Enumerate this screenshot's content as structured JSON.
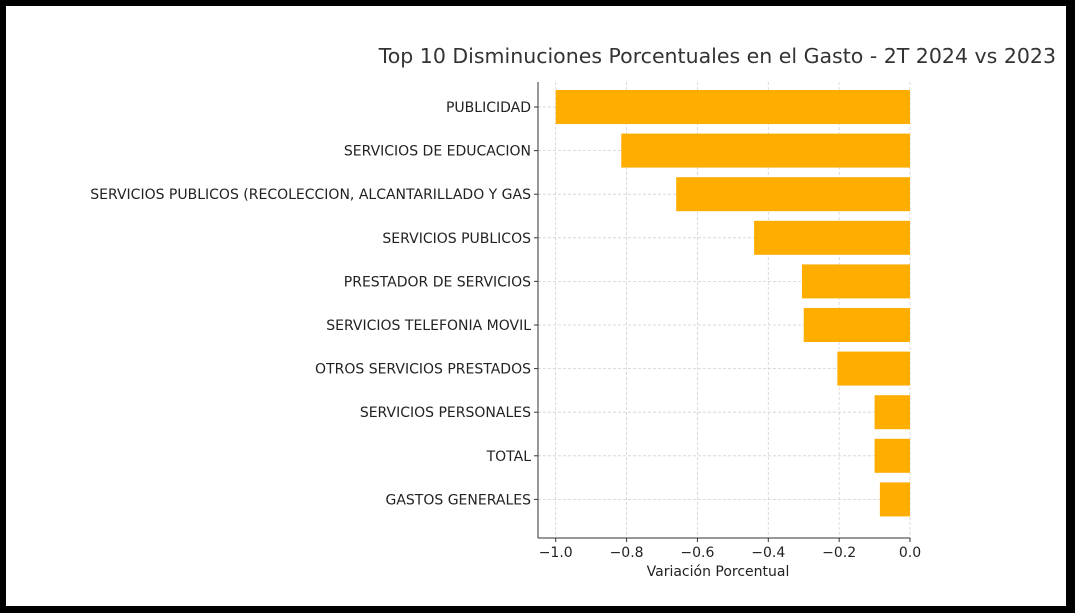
{
  "chart_data": {
    "type": "bar",
    "orientation": "horizontal",
    "title": "Top 10 Disminuciones Porcentuales en el Gasto - 2T 2024 vs 2023",
    "xlabel": "Variación Porcentual",
    "ylabel": "",
    "xlim": [
      -1.05,
      0.0
    ],
    "xticks": [
      -1.0,
      -0.8,
      -0.6,
      -0.4,
      -0.2,
      0.0
    ],
    "xtick_labels": [
      "−1.0",
      "−0.8",
      "−0.6",
      "−0.4",
      "−0.2",
      "0.0"
    ],
    "grid": true,
    "bar_color": "#FFAE00",
    "categories": [
      "PUBLICIDAD",
      "SERVICIOS DE EDUCACION",
      "SERVICIOS PUBLICOS (RECOLECCION, ALCANTARILLADO Y GAS",
      "SERVICIOS PUBLICOS",
      "PRESTADOR DE SERVICIOS",
      "SERVICIOS TELEFONIA MOVIL",
      "OTROS SERVICIOS PRESTADOS",
      "SERVICIOS PERSONALES",
      "TOTAL",
      "GASTOS GENERALES"
    ],
    "values": [
      -1.0,
      -0.815,
      -0.66,
      -0.44,
      -0.305,
      -0.3,
      -0.205,
      -0.1,
      -0.1,
      -0.085
    ]
  }
}
